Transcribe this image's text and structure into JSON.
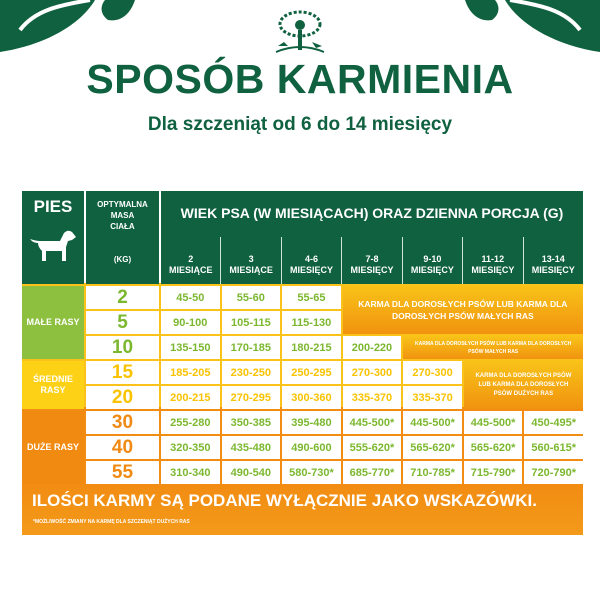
{
  "header": {
    "title": "SPOSÓB KARMIENIA",
    "subtitle": "Dla szczeniąt od 6 do 14 miesięcy",
    "brand_color": "#0f6140",
    "logo_icon": "tree-with-paw-and-animals-logo"
  },
  "table": {
    "col_pies": "PIES",
    "pies_icon": "puppy-silhouette-icon",
    "col_mass_lines": [
      "OPTYMALNA",
      "MASA",
      "CIAŁA"
    ],
    "col_mass_unit": "(KG)",
    "col_age_title": "WIEK PSA (W MIESIĄCACH) ORAZ DZIENNA PORCJA (G)",
    "months": [
      {
        "n": "2",
        "u": "MIESIĄCE"
      },
      {
        "n": "3",
        "u": "MIESIĄCE"
      },
      {
        "n": "4-6",
        "u": "MIESIĘCY"
      },
      {
        "n": "7-8",
        "u": "MIESIĘCY"
      },
      {
        "n": "9-10",
        "u": "MIESIĘCY"
      },
      {
        "n": "11-12",
        "u": "MIESIĘCY"
      },
      {
        "n": "13-14",
        "u": "MIESIĘCY"
      }
    ],
    "categories": [
      {
        "label": "MAŁE RASY",
        "color": "#8dc03f",
        "mass_color": "#7cb82f",
        "value_color": "#7cb82f"
      },
      {
        "label": "ŚREDNIE RASY",
        "color": "#fcd116",
        "mass_color": "#f9c300",
        "value_color": "#f9c300"
      },
      {
        "label": "DUŻE RASY",
        "color": "#f18a10",
        "mass_color": "#f08a12",
        "value_color": "#7cb82f"
      }
    ],
    "rows": [
      {
        "cat": 0,
        "mass": "2",
        "values": [
          "45-50",
          "55-60",
          "55-65"
        ]
      },
      {
        "cat": 0,
        "mass": "5",
        "values": [
          "90-100",
          "105-115",
          "115-130"
        ]
      },
      {
        "cat": 0,
        "mass": "10",
        "values": [
          "135-150",
          "170-185",
          "180-215",
          "200-220"
        ]
      },
      {
        "cat": 1,
        "mass": "15",
        "values": [
          "185-205",
          "230-250",
          "250-295",
          "270-300",
          "270-300"
        ]
      },
      {
        "cat": 1,
        "mass": "20",
        "values": [
          "200-215",
          "270-295",
          "300-360",
          "335-370",
          "335-370"
        ]
      },
      {
        "cat": 2,
        "mass": "30",
        "values": [
          "255-280",
          "350-385",
          "395-480",
          "445-500*",
          "445-500*",
          "445-500*",
          "450-495*"
        ]
      },
      {
        "cat": 2,
        "mass": "40",
        "values": [
          "320-350",
          "435-480",
          "490-600",
          "555-620*",
          "565-620*",
          "565-620*",
          "560-615*"
        ]
      },
      {
        "cat": 2,
        "mass": "55",
        "values": [
          "310-340",
          "490-540",
          "580-730*",
          "685-770*",
          "710-785*",
          "715-790*",
          "720-790*"
        ]
      }
    ],
    "merged_notes": [
      {
        "text": "KARMA DLA DOROSŁYCH PSÓW LUB KARMA DLA DOROSŁYCH PSÓW MAŁYCH RAS",
        "row_start": 0,
        "row_span": 2,
        "col_start": 3,
        "size": "lg"
      },
      {
        "text": "KARMA DLA DOROSŁYCH PSÓW LUB KARMA DLA DOROSŁYCH PSÓW MAŁYCH RAS",
        "row_start": 2,
        "row_span": 1,
        "col_start": 4,
        "size": "sm"
      },
      {
        "text": "KARMA DLA DOROSŁYCH PSÓW LUB KARMA DLA DOROSŁYCH PSÓW DUŻYCH RAS",
        "row_start": 3,
        "row_span": 2,
        "col_start": 5,
        "size": "md"
      }
    ]
  },
  "footer": {
    "disclaimer": "ILOŚCI KARMY SĄ PODANE WYŁĄCZNIE JAKO WSKAZÓWKI.",
    "footnote": "*MOŻLIWOŚĆ ZMIANY NA KARMĘ DLA SZCZENIĄT DUŻYCH RAS"
  }
}
